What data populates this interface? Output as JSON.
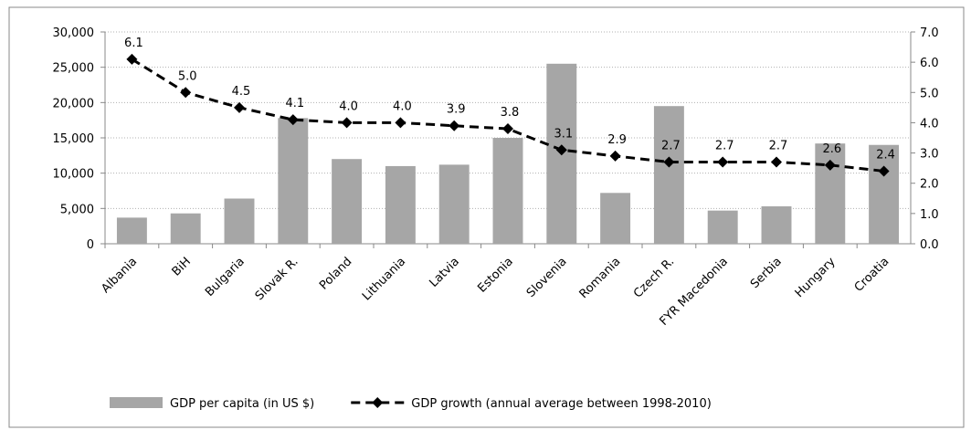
{
  "chart_data": {
    "type": "bar_line",
    "categories": [
      "Albania",
      "BiH",
      "Bulgaria",
      "Slovak R.",
      "Poland",
      "Lithuania",
      "Latvia",
      "Estonia",
      "Slovenia",
      "Romania",
      "Czech R.",
      "FYR Macedonia",
      "Serbia",
      "Hungary",
      "Croatia"
    ],
    "series": [
      {
        "name": "GDP per capita (in US $)",
        "type": "bar",
        "color": "#a6a6a6",
        "values": [
          3700,
          4300,
          6400,
          17800,
          12000,
          11000,
          11200,
          15000,
          25500,
          7200,
          19500,
          4700,
          5300,
          14200,
          14000
        ]
      },
      {
        "name": "GDP growth (annual average between 1998-2010)",
        "type": "line",
        "axis": "y2",
        "color": "#000000",
        "values": [
          6.1,
          5.0,
          4.5,
          4.1,
          4.0,
          4.0,
          3.9,
          3.8,
          3.1,
          2.9,
          2.7,
          2.7,
          2.7,
          2.6,
          2.4
        ],
        "value_labels": [
          "6.1",
          "5.0",
          "4.5",
          "4.1",
          "4.0",
          "4.0",
          "3.9",
          "3.8",
          "3.1",
          "2.9",
          "2.7",
          "2.7",
          "2.7",
          "2.6",
          "2.4"
        ]
      }
    ],
    "ylim": [
      0,
      30000
    ],
    "yticks": [
      0,
      {
        "value": 5000,
        "label": "5,000"
      },
      {
        "value": 10000,
        "label": "10,000"
      },
      {
        "value": 15000,
        "label": "15,000"
      },
      {
        "value": 20000,
        "label": "20,000"
      },
      {
        "value": 25000,
        "label": "25,000"
      },
      {
        "value": 30000,
        "label": "30,000"
      }
    ],
    "y2lim": [
      0,
      7
    ],
    "y2ticks": [
      {
        "value": 0,
        "label": "0.0"
      },
      {
        "value": 1,
        "label": "1.0"
      },
      {
        "value": 2,
        "label": "2.0"
      },
      {
        "value": 3,
        "label": "3.0"
      },
      {
        "value": 4,
        "label": "4.0"
      },
      {
        "value": 5,
        "label": "5.0"
      },
      {
        "value": 6,
        "label": "6.0"
      },
      {
        "value": 7,
        "label": "7.0"
      }
    ],
    "grid": true,
    "legend": "bottom"
  }
}
